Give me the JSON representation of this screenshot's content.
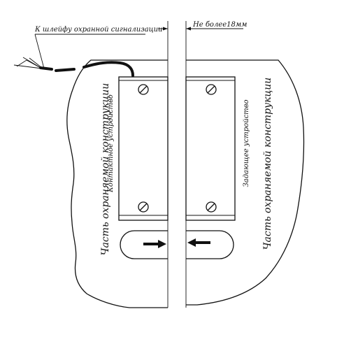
{
  "labels": {
    "signal_loop": "К шлейфу охранной сигнализации",
    "gap_dimension": "Не более18мм",
    "left_structure": "Часть охраняемой конструкции",
    "right_structure": "Часть охраняемой конструкции",
    "contact_device": "Контактное устройство",
    "setting_device": "Задающее устройство"
  }
}
